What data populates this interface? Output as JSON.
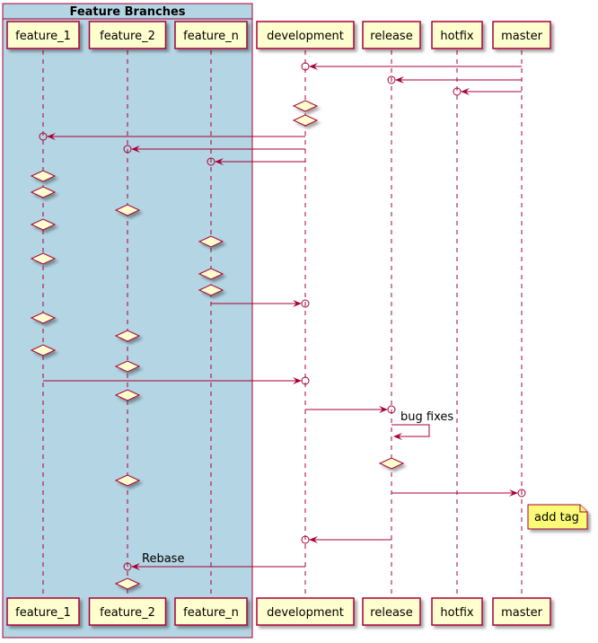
{
  "group": {
    "title": "Feature Branches",
    "fill": "#B4D5E3"
  },
  "participants": [
    {
      "id": "feature_1",
      "label": "feature_1"
    },
    {
      "id": "feature_2",
      "label": "feature_2"
    },
    {
      "id": "feature_n",
      "label": "feature_n"
    },
    {
      "id": "development",
      "label": "development"
    },
    {
      "id": "release",
      "label": "release"
    },
    {
      "id": "hotfix",
      "label": "hotfix"
    },
    {
      "id": "master",
      "label": "master"
    }
  ],
  "events": [
    {
      "type": "msg",
      "from": "master",
      "to": "development"
    },
    {
      "type": "msg",
      "from": "master",
      "to": "release"
    },
    {
      "type": "msg",
      "from": "master",
      "to": "hotfix"
    },
    {
      "type": "commit",
      "on": "development"
    },
    {
      "type": "commit",
      "on": "development"
    },
    {
      "type": "msg",
      "from": "development",
      "to": "feature_1"
    },
    {
      "type": "msg",
      "from": "development",
      "to": "feature_2"
    },
    {
      "type": "msg",
      "from": "development",
      "to": "feature_n"
    },
    {
      "type": "commit",
      "on": "feature_1"
    },
    {
      "type": "commit",
      "on": "feature_1"
    },
    {
      "type": "commit",
      "on": "feature_2"
    },
    {
      "type": "commit",
      "on": "feature_1"
    },
    {
      "type": "commit",
      "on": "feature_n"
    },
    {
      "type": "commit",
      "on": "feature_1"
    },
    {
      "type": "commit",
      "on": "feature_n"
    },
    {
      "type": "commit",
      "on": "feature_n"
    },
    {
      "type": "msg",
      "from": "feature_n",
      "to": "development"
    },
    {
      "type": "commit",
      "on": "feature_1"
    },
    {
      "type": "commit",
      "on": "feature_2"
    },
    {
      "type": "commit",
      "on": "feature_1"
    },
    {
      "type": "commit",
      "on": "feature_2"
    },
    {
      "type": "msg",
      "from": "feature_1",
      "to": "development"
    },
    {
      "type": "commit",
      "on": "feature_2"
    },
    {
      "type": "msg",
      "from": "development",
      "to": "release"
    },
    {
      "type": "self",
      "on": "release",
      "label": "bug fixes"
    },
    {
      "type": "commit",
      "on": "release"
    },
    {
      "type": "commit",
      "on": "feature_2"
    },
    {
      "type": "msg",
      "from": "release",
      "to": "master"
    },
    {
      "type": "note",
      "on": "master",
      "label": "add tag"
    },
    {
      "type": "msg",
      "from": "release",
      "to": "development"
    },
    {
      "type": "msg",
      "from": "development",
      "to": "feature_2",
      "label": "Rebase"
    },
    {
      "type": "commit",
      "on": "feature_2"
    }
  ]
}
